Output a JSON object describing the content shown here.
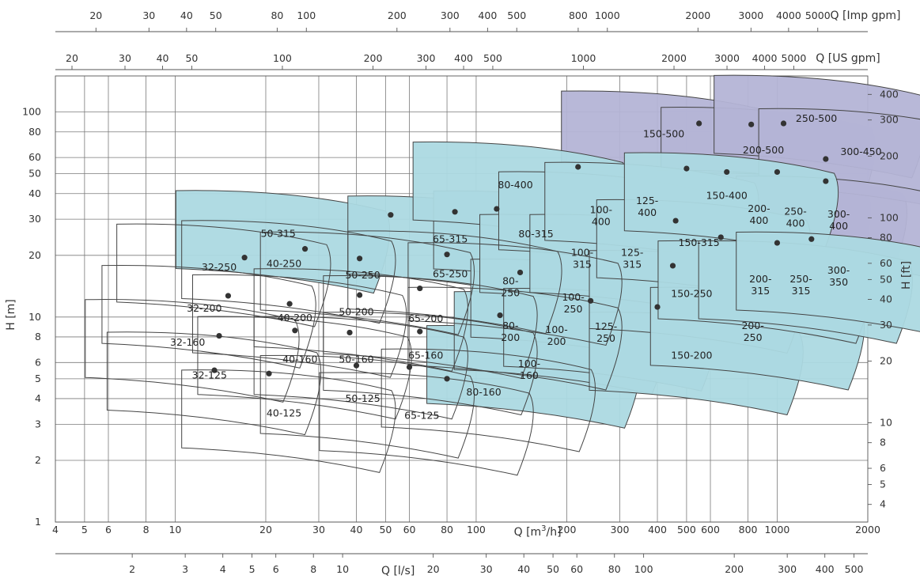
{
  "chart_data": {
    "type": "scatter",
    "subtype": "pump performance range chart (log-log)",
    "axes": {
      "x_primary": {
        "label_prefix": "Q [m",
        "label_sup": "3",
        "label_suffix": "/h]",
        "scale": "log",
        "range": [
          4,
          2000
        ],
        "ticks": [
          4,
          5,
          6,
          8,
          10,
          20,
          30,
          40,
          50,
          60,
          80,
          100,
          200,
          300,
          400,
          500,
          600,
          800,
          1000,
          2000
        ],
        "tick_labels": [
          "4",
          "5",
          "6",
          "8",
          "10",
          "20",
          "30",
          "40",
          "50",
          "60",
          "80",
          "100",
          "200",
          "300",
          "400",
          "500",
          "600",
          "800",
          "1000",
          "2000"
        ]
      },
      "x_ls": {
        "label": "Q [l/s]",
        "scale": "log",
        "ticks": [
          2,
          3,
          4,
          5,
          6,
          8,
          10,
          20,
          30,
          40,
          50,
          60,
          80,
          100,
          200,
          300,
          400,
          500
        ],
        "tick_labels": [
          "2",
          "3",
          "4",
          "5",
          "6",
          "8",
          "10",
          "20",
          "30",
          "40",
          "50",
          "60",
          "80",
          "100",
          "200",
          "300",
          "400",
          "500"
        ]
      },
      "x_us": {
        "label": "Q [US gpm]",
        "scale": "log",
        "ticks": [
          20,
          30,
          40,
          50,
          100,
          200,
          300,
          400,
          500,
          1000,
          2000,
          3000,
          4000,
          5000
        ],
        "tick_labels": [
          "20",
          "30",
          "40",
          "50",
          "100",
          "200",
          "300",
          "400",
          "500",
          "1000",
          "2000",
          "3000",
          "4000",
          "5000"
        ]
      },
      "x_imp": {
        "label": "Q [Imp gpm]",
        "scale": "log",
        "ticks": [
          20,
          30,
          40,
          50,
          80,
          100,
          200,
          300,
          400,
          500,
          800,
          1000,
          2000,
          3000,
          4000,
          5000
        ],
        "tick_labels": [
          "20",
          "30",
          "40",
          "50",
          "80",
          "100",
          "200",
          "300",
          "400",
          "500",
          "800",
          "1000",
          "2000",
          "3000",
          "4000",
          "5000"
        ]
      },
      "y_left": {
        "label": "H [m]",
        "scale": "log",
        "range": [
          1,
          150
        ],
        "ticks": [
          1,
          2,
          3,
          4,
          5,
          6,
          8,
          10,
          20,
          30,
          40,
          50,
          60,
          80,
          100
        ],
        "tick_labels": [
          "1",
          "2",
          "3",
          "4",
          "5",
          "6",
          "8",
          "10",
          "20",
          "30",
          "40",
          "50",
          "60",
          "80",
          "100"
        ]
      },
      "y_right": {
        "label": "H [ft]",
        "scale": "log",
        "ticks": [
          4,
          5,
          6,
          8,
          10,
          20,
          30,
          40,
          50,
          60,
          80,
          100,
          200,
          300,
          400
        ],
        "tick_labels": [
          "4",
          "5",
          "6",
          "8",
          "10",
          "20",
          "30",
          "40",
          "50",
          "60",
          "80",
          "100",
          "200",
          "300",
          "400"
        ]
      }
    },
    "grid": true,
    "colors": {
      "white": "#ffffff",
      "blue": "#acd9e2",
      "purple": "#b4b4d6",
      "grid": "#7a7a7a",
      "dot": "#333333"
    },
    "pumps": [
      {
        "name": "32-125",
        "color": "white",
        "label_at": [
          13,
          5.2
        ],
        "bep": [
          13.5,
          5.5
        ]
      },
      {
        "name": "32-160",
        "color": "white",
        "label_at": [
          11,
          7.5
        ],
        "bep": [
          14,
          8.1
        ]
      },
      {
        "name": "32-200",
        "color": "white",
        "label_at": [
          12.5,
          11
        ],
        "bep": [
          15,
          12.7
        ]
      },
      {
        "name": "32-250",
        "color": "white",
        "label_at": [
          14,
          17.5
        ],
        "bep": [
          17,
          19.5
        ]
      },
      {
        "name": "40-125",
        "color": "white",
        "label_at": [
          23,
          3.4
        ],
        "bep": [
          20.5,
          5.3
        ]
      },
      {
        "name": "40-160",
        "color": "white",
        "label_at": [
          26,
          6.2
        ],
        "bep": [
          25,
          8.6
        ]
      },
      {
        "name": "40-200",
        "color": "white",
        "label_at": [
          25,
          9.9
        ],
        "bep": [
          24,
          11.6
        ]
      },
      {
        "name": "40-250",
        "color": "white",
        "label_at": [
          23,
          18.2
        ],
        "bep": [
          27,
          21.5
        ]
      },
      {
        "name": "50-125",
        "color": "white",
        "label_at": [
          42,
          4
        ],
        "bep": [
          40,
          5.8
        ]
      },
      {
        "name": "50-160",
        "color": "white",
        "label_at": [
          40,
          6.2
        ],
        "bep": [
          38,
          8.4
        ]
      },
      {
        "name": "50-200",
        "color": "white",
        "label_at": [
          40,
          10.6
        ],
        "bep": [
          41,
          12.8
        ]
      },
      {
        "name": "50-250",
        "color": "white",
        "label_at": [
          42,
          16
        ],
        "bep": [
          41,
          19.3
        ]
      },
      {
        "name": "65-125",
        "color": "white",
        "label_at": [
          66,
          3.3
        ],
        "bep": [
          60,
          5.7
        ]
      },
      {
        "name": "65-160",
        "color": "white",
        "label_at": [
          68,
          6.5
        ],
        "bep": [
          65,
          8.5
        ]
      },
      {
        "name": "65-200",
        "color": "white",
        "label_at": [
          68,
          9.8
        ],
        "bep": [
          65,
          13.8
        ]
      },
      {
        "name": "65-250",
        "color": "white",
        "label_at": [
          82,
          16.2
        ],
        "bep": [
          80,
          20.2
        ]
      },
      {
        "name": "80-160",
        "color": "white",
        "label_at": [
          106,
          4.3
        ],
        "bep": [
          80,
          5
        ]
      },
      {
        "name": "80-200",
        "color": "white",
        "label_at": [
          130,
          8.6
        ],
        "bep": [
          120,
          10.2
        ]
      },
      {
        "name": "80-250",
        "color": "white",
        "label_at": [
          130,
          14.2
        ],
        "bep": [
          140,
          16.5
        ]
      },
      {
        "name": "50-315",
        "color": "blue",
        "label_at": [
          22,
          25.5
        ],
        "bep": [
          52,
          31.5
        ]
      },
      {
        "name": "65-315",
        "color": "blue",
        "label_at": [
          82,
          24
        ],
        "bep": [
          85,
          32.6
        ]
      },
      {
        "name": "80-315",
        "color": "blue",
        "label_at": [
          158,
          25.4
        ],
        "bep": [
          117,
          33.7
        ]
      },
      {
        "name": "80-400",
        "color": "blue",
        "label_at": [
          135,
          44
        ],
        "bep": [
          218,
          54
        ]
      },
      {
        "name": "100-160",
        "color": "blue",
        "label_at": [
          150,
          5.6
        ],
        "bep": null
      },
      {
        "name": "100-200",
        "color": "blue",
        "label_at": [
          185,
          8.2
        ],
        "bep": null
      },
      {
        "name": "100-250",
        "color": "blue",
        "label_at": [
          210,
          11.8
        ],
        "bep": null
      },
      {
        "name": "100-315",
        "color": "blue",
        "label_at": [
          225,
          19.5
        ],
        "bep": null
      },
      {
        "name": "100-400",
        "color": "blue",
        "label_at": [
          260,
          31.5
        ],
        "bep": null
      },
      {
        "name": "125-250",
        "color": "blue",
        "label_at": [
          270,
          8.5
        ],
        "bep": [
          240,
          12
        ]
      },
      {
        "name": "125-315",
        "color": "blue",
        "label_at": [
          330,
          19.5
        ],
        "bep": null
      },
      {
        "name": "125-400",
        "color": "blue",
        "label_at": [
          370,
          35
        ],
        "bep": null
      },
      {
        "name": "150-200",
        "color": "blue",
        "label_at": [
          520,
          6.5
        ],
        "bep": [
          400,
          11.2
        ]
      },
      {
        "name": "150-250",
        "color": "blue",
        "label_at": [
          520,
          13
        ],
        "bep": [
          450,
          17.8
        ]
      },
      {
        "name": "150-315",
        "color": "blue",
        "label_at": [
          550,
          23
        ],
        "bep": [
          460,
          29.5
        ]
      },
      {
        "name": "150-400",
        "color": "blue",
        "label_at": [
          680,
          39
        ],
        "bep": [
          500,
          53
        ]
      },
      {
        "name": "200-250",
        "color": "blue",
        "label_at": [
          830,
          8.6
        ],
        "bep": null
      },
      {
        "name": "200-315",
        "color": "blue",
        "label_at": [
          880,
          14.5
        ],
        "bep": [
          650,
          24.5
        ]
      },
      {
        "name": "250-315",
        "color": "blue",
        "label_at": [
          1200,
          14.5
        ],
        "bep": [
          1000,
          23
        ]
      },
      {
        "name": "300-350",
        "color": "blue",
        "label_at": [
          1600,
          16
        ],
        "bep": [
          1300,
          24
        ]
      },
      {
        "name": "150-500",
        "color": "purple",
        "label_at": [
          420,
          78
        ],
        "bep": [
          550,
          88
        ]
      },
      {
        "name": "200-500",
        "color": "purple",
        "label_at": [
          900,
          65
        ],
        "bep": [
          820,
          87
        ]
      },
      {
        "name": "200-400",
        "color": "purple",
        "label_at": [
          870,
          32
        ],
        "bep": [
          680,
          51
        ]
      },
      {
        "name": "250-500",
        "color": "purple",
        "label_at": [
          1350,
          93
        ],
        "bep": [
          1050,
          88
        ]
      },
      {
        "name": "250-400",
        "color": "purple",
        "label_at": [
          1150,
          31
        ],
        "bep": [
          1000,
          51
        ]
      },
      {
        "name": "300-450",
        "color": "purple",
        "label_at": [
          1900,
          64
        ],
        "bep": [
          1450,
          59
        ]
      },
      {
        "name": "300-400",
        "color": "purple",
        "label_at": [
          1600,
          30
        ],
        "bep": [
          1450,
          46
        ]
      }
    ]
  }
}
